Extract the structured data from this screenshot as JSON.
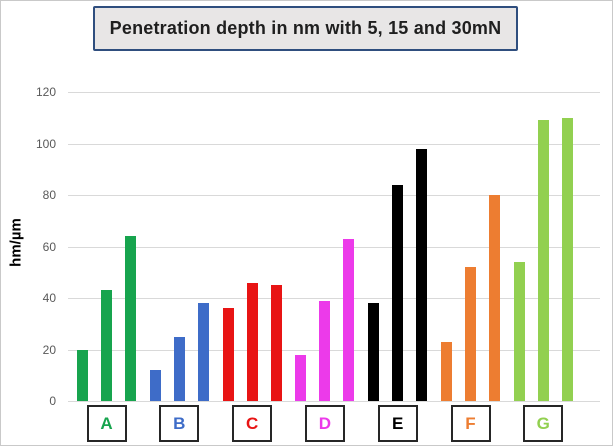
{
  "title": "Penetration depth in nm with 5, 15 and 30mN",
  "colors": {
    "title_box_bg": "#E8E6E6",
    "title_box_border": "#2F4E7E",
    "gridline": "#D9D9D9",
    "tick_text": "#595959",
    "category_box_border": "#262626",
    "background": "#FFFFFF"
  },
  "chart_data": {
    "type": "bar",
    "title": "Penetration depth in nm with 5, 15 and 30mN",
    "xlabel": "",
    "ylabel": "hm/µm",
    "ylim": [
      0,
      120
    ],
    "yticks": [
      0,
      20,
      40,
      60,
      80,
      100,
      120
    ],
    "grid": true,
    "legend_position": "none",
    "categories": [
      "A",
      "B",
      "C",
      "D",
      "E",
      "F",
      "G"
    ],
    "category_colors": [
      "#17A44E",
      "#3E6CC8",
      "#E81414",
      "#EC3AEA",
      "#000000",
      "#ED7D31",
      "#92D050"
    ],
    "series": [
      {
        "name": "5mN",
        "values": [
          20,
          12,
          36,
          18,
          38,
          23,
          54
        ]
      },
      {
        "name": "15mN",
        "values": [
          43,
          25,
          46,
          39,
          84,
          52,
          109
        ]
      },
      {
        "name": "30mN",
        "values": [
          64,
          38,
          45,
          63,
          98,
          80,
          110
        ]
      }
    ]
  }
}
